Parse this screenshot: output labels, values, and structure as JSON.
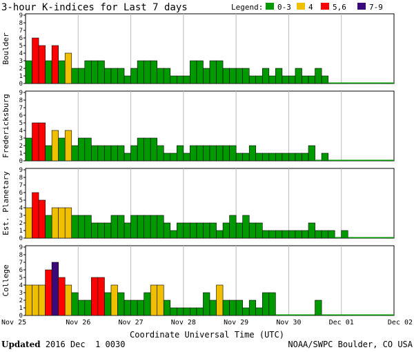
{
  "chart_data": {
    "type": "bar",
    "title": "3-hour K-indices for Last 7 days",
    "legend": {
      "label": "Legend:",
      "entries": [
        {
          "label": "0-3",
          "color": "#009900"
        },
        {
          "label": "4",
          "color": "#f0c000"
        },
        {
          "label": "5,6",
          "color": "#ff0000"
        },
        {
          "label": "7-9",
          "color": "#3a0a7a"
        }
      ]
    },
    "ylim": [
      0,
      9
    ],
    "yticks": [
      "0",
      "1",
      "2",
      "3",
      "4",
      "5",
      "6",
      "7",
      "8",
      "9"
    ],
    "xlabel": "Coordinate Universal Time (UTC)",
    "x_tick_labels": [
      "Nov 25",
      "Nov 26",
      "Nov 27",
      "Nov 28",
      "Nov 29",
      "Nov 30",
      "Dec 01",
      "Dec 02"
    ],
    "panels": [
      {
        "name": "Boulder",
        "values": [
          3,
          6,
          5,
          3,
          5,
          3,
          4,
          2,
          2,
          3,
          3,
          3,
          2,
          2,
          2,
          1,
          2,
          3,
          3,
          3,
          2,
          2,
          1,
          1,
          1,
          3,
          3,
          2,
          3,
          3,
          2,
          2,
          2,
          2,
          1,
          1,
          2,
          1,
          2,
          1,
          1,
          2,
          1,
          1,
          2,
          1,
          0,
          0,
          0,
          0,
          0,
          0,
          0,
          0,
          0,
          0
        ]
      },
      {
        "name": "Fredericksburg",
        "values": [
          3,
          5,
          5,
          2,
          4,
          3,
          4,
          2,
          3,
          3,
          2,
          2,
          2,
          2,
          2,
          1,
          2,
          3,
          3,
          3,
          2,
          1,
          1,
          2,
          1,
          2,
          2,
          2,
          2,
          2,
          2,
          2,
          1,
          1,
          2,
          1,
          1,
          1,
          1,
          1,
          1,
          1,
          1,
          2,
          0,
          1,
          0,
          0,
          0,
          0,
          0,
          0,
          0,
          0,
          0,
          0
        ]
      },
      {
        "name": "Est. Planetary",
        "values": [
          4,
          6,
          5,
          3,
          4,
          4,
          4,
          3,
          3,
          3,
          2,
          2,
          2,
          3,
          3,
          2,
          3,
          3,
          3,
          3,
          3,
          2,
          1,
          2,
          2,
          2,
          2,
          2,
          2,
          1,
          2,
          3,
          2,
          3,
          2,
          2,
          1,
          1,
          1,
          1,
          1,
          1,
          1,
          2,
          1,
          1,
          1,
          0,
          1,
          0,
          0,
          0,
          0,
          0,
          0,
          0
        ]
      },
      {
        "name": "College",
        "values": [
          4,
          4,
          4,
          6,
          7,
          5,
          4,
          3,
          2,
          2,
          5,
          5,
          3,
          4,
          3,
          2,
          2,
          2,
          3,
          4,
          4,
          2,
          1,
          1,
          1,
          1,
          1,
          3,
          2,
          4,
          2,
          2,
          2,
          1,
          2,
          1,
          3,
          3,
          0,
          0,
          0,
          0,
          0,
          0,
          2,
          0,
          0,
          0,
          0,
          0,
          0,
          0,
          0,
          0,
          0,
          0
        ]
      }
    ],
    "footer_left_bold": "Updated",
    "footer_left_text": " 2016 Dec  1 0030",
    "footer_right": "NOAA/SWPC Boulder, CO USA"
  }
}
